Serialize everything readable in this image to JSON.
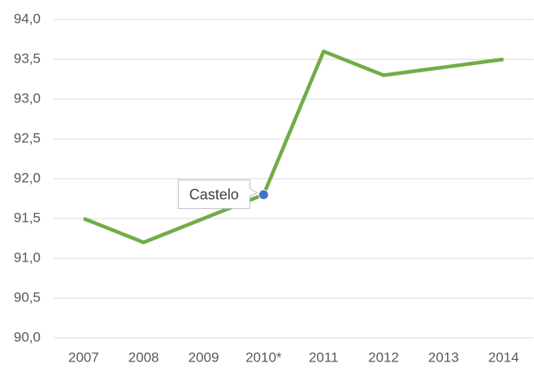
{
  "chart_data": {
    "type": "line",
    "categories": [
      "2007",
      "2008",
      "2009",
      "2010*",
      "2011",
      "2012",
      "2013",
      "2014"
    ],
    "series": [
      {
        "name": "Castelo",
        "color": "#70ad47",
        "values": [
          91.5,
          91.2,
          91.5,
          91.8,
          93.6,
          93.3,
          93.4,
          93.5
        ]
      }
    ],
    "hover": {
      "x": "2010*",
      "color": "#4472c4"
    },
    "ylim": [
      90,
      94
    ],
    "yticks": [
      {
        "value": 90,
        "label": "90,0"
      },
      {
        "value": 90.5,
        "label": "90,5"
      },
      {
        "value": 91,
        "label": "91,0"
      },
      {
        "value": 91.5,
        "label": "91,5"
      },
      {
        "value": 92,
        "label": "92,0"
      },
      {
        "value": 92.5,
        "label": "92,5"
      },
      {
        "value": 93,
        "label": "93,0"
      },
      {
        "value": 93.5,
        "label": "93,5"
      },
      {
        "value": 94,
        "label": "94,0"
      }
    ],
    "grid": true
  }
}
